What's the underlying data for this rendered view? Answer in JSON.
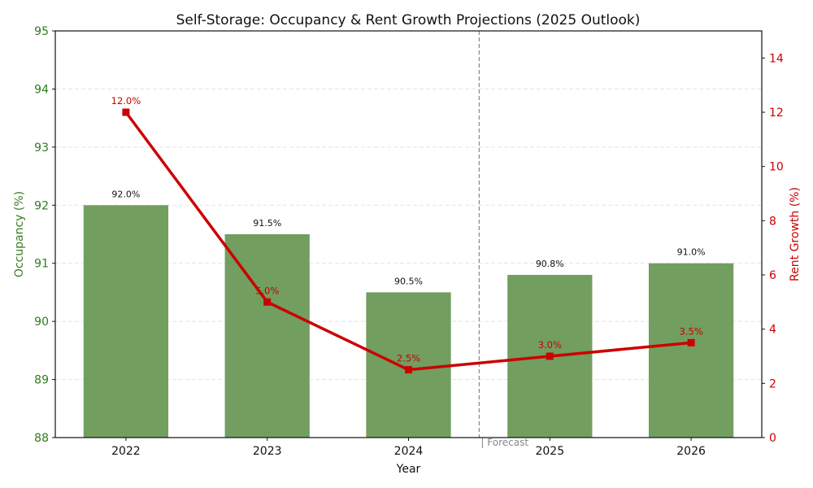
{
  "chart_data": {
    "type": "bar+line",
    "title": "Self-Storage: Occupancy & Rent Growth Projections (2025 Outlook)",
    "xlabel": "Year",
    "categories": [
      "2022",
      "2023",
      "2024",
      "2025",
      "2026"
    ],
    "series": [
      {
        "name": "Occupancy (%)",
        "type": "bar",
        "axis": "left",
        "color": "#729e5f",
        "values": [
          92.0,
          91.5,
          90.5,
          90.8,
          91.0
        ],
        "labels": [
          "92.0%",
          "91.5%",
          "90.5%",
          "90.8%",
          "91.0%"
        ]
      },
      {
        "name": "Rent Growth (%)",
        "type": "line",
        "axis": "right",
        "color": "#cc0000",
        "marker": "square",
        "values": [
          12.0,
          5.0,
          2.5,
          3.0,
          3.5
        ],
        "labels": [
          "12.0%",
          "5.0%",
          "2.5%",
          "3.0%",
          "3.5%"
        ]
      }
    ],
    "y_left": {
      "label": "Occupancy (%)",
      "range": [
        88,
        95
      ],
      "ticks": [
        "88",
        "89",
        "90",
        "91",
        "92",
        "93",
        "94",
        "95"
      ],
      "color": "#2f7a1f"
    },
    "y_right": {
      "label": "Rent Growth (%)",
      "range": [
        0,
        15
      ],
      "ticks": [
        "0",
        "2",
        "4",
        "6",
        "8",
        "10",
        "12",
        "14"
      ],
      "color": "#cc0000"
    },
    "grid": "horizontal dashed",
    "annotations": [
      {
        "text": "| Forecast",
        "position": "divider between 2024 and 2025",
        "style": "vertical dashed line"
      }
    ],
    "legend": "none"
  }
}
